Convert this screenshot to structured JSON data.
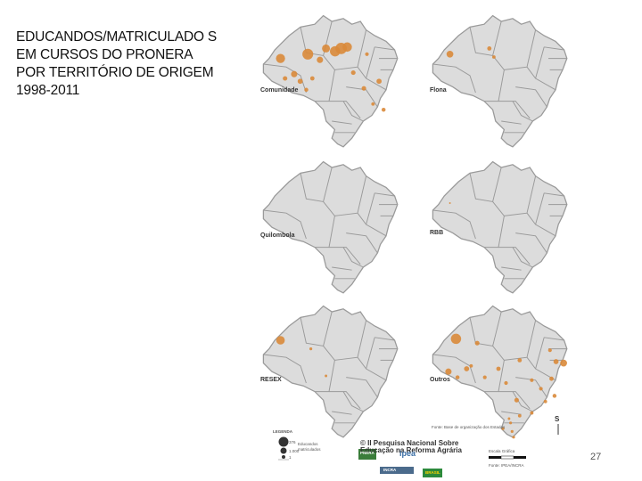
{
  "title": "EDUCANDOS/MATRICULADO S EM CURSOS DO PRONERA POR TERRITÓRIO DE ORIGEM 1998-2011",
  "maps": [
    {
      "label": "Comunidade",
      "dot_color": "#d98a3a",
      "dots": [
        [
          0.18,
          0.36,
          3.2
        ],
        [
          0.36,
          0.33,
          3.8
        ],
        [
          0.48,
          0.29,
          2.8
        ],
        [
          0.54,
          0.31,
          3.6
        ],
        [
          0.58,
          0.29,
          4
        ],
        [
          0.62,
          0.28,
          3.3
        ],
        [
          0.44,
          0.37,
          2.2
        ],
        [
          0.27,
          0.47,
          2.2
        ],
        [
          0.31,
          0.52,
          1.8
        ],
        [
          0.21,
          0.5,
          1.6
        ],
        [
          0.66,
          0.46,
          1.6
        ],
        [
          0.75,
          0.33,
          1.3
        ],
        [
          0.83,
          0.52,
          1.8
        ],
        [
          0.73,
          0.57,
          1.6
        ],
        [
          0.86,
          0.72,
          1.4
        ],
        [
          0.79,
          0.68,
          1.2
        ],
        [
          0.39,
          0.5,
          1.5
        ],
        [
          0.35,
          0.58,
          1.4
        ]
      ]
    },
    {
      "label": "Flona",
      "dot_color": "#d98a3a",
      "dots": [
        [
          0.18,
          0.33,
          2.4
        ],
        [
          0.44,
          0.29,
          1.5
        ],
        [
          0.47,
          0.35,
          1.2
        ]
      ]
    },
    {
      "label": "Quilombola",
      "dot_color": "#d98a3a",
      "dots": []
    },
    {
      "label": "RBB",
      "dot_color": "#d98a3a",
      "dots": [
        [
          0.18,
          0.35,
          0.6
        ]
      ]
    },
    {
      "label": "RESEX",
      "dot_color": "#d98a3a",
      "dots": [
        [
          0.18,
          0.3,
          3
        ],
        [
          0.38,
          0.36,
          1
        ],
        [
          0.48,
          0.55,
          0.9
        ]
      ]
    },
    {
      "label": "Outros",
      "dot_color": "#d98a3a",
      "dots": [
        [
          0.22,
          0.29,
          3.6
        ],
        [
          0.36,
          0.32,
          1.6
        ],
        [
          0.17,
          0.52,
          2.2
        ],
        [
          0.29,
          0.5,
          1.8
        ],
        [
          0.5,
          0.5,
          1.5
        ],
        [
          0.41,
          0.56,
          1.3
        ],
        [
          0.55,
          0.6,
          1.3
        ],
        [
          0.62,
          0.72,
          1.6
        ],
        [
          0.64,
          0.44,
          1.5
        ],
        [
          0.72,
          0.58,
          1.3
        ],
        [
          0.84,
          0.37,
          1.3
        ],
        [
          0.88,
          0.45,
          1.8
        ],
        [
          0.93,
          0.46,
          2.4
        ],
        [
          0.85,
          0.57,
          1.5
        ],
        [
          0.78,
          0.64,
          1.3
        ],
        [
          0.81,
          0.73,
          1.2
        ],
        [
          0.87,
          0.69,
          1.4
        ],
        [
          0.64,
          0.83,
          1.2
        ],
        [
          0.58,
          0.88,
          1
        ],
        [
          0.59,
          0.94,
          1
        ],
        [
          0.6,
          0.98,
          1
        ],
        [
          0.53,
          0.92,
          1
        ],
        [
          0.57,
          0.85,
          0.9
        ],
        [
          0.72,
          0.81,
          1.2
        ],
        [
          0.32,
          0.48,
          1.2
        ],
        [
          0.23,
          0.56,
          1.4
        ]
      ]
    }
  ],
  "legend": {
    "title": "LEGENDA",
    "items": [
      "Educandos",
      "matriculados"
    ],
    "values": [
      "376",
      "1.000",
      "1"
    ]
  },
  "footer": {
    "title_line1": "© II Pesquisa Nacional Sobre",
    "title_line2": "Educação na Reforma Agrária",
    "logos": [
      "PNERA",
      "ipea",
      "INCRA",
      "BRASIL"
    ],
    "scale_label": "Escala Gráfica",
    "north": "S",
    "note": "Fonte: Base de organização dos Estados",
    "source": "Fonte: IPEA/INCRA"
  },
  "page_number": "27"
}
